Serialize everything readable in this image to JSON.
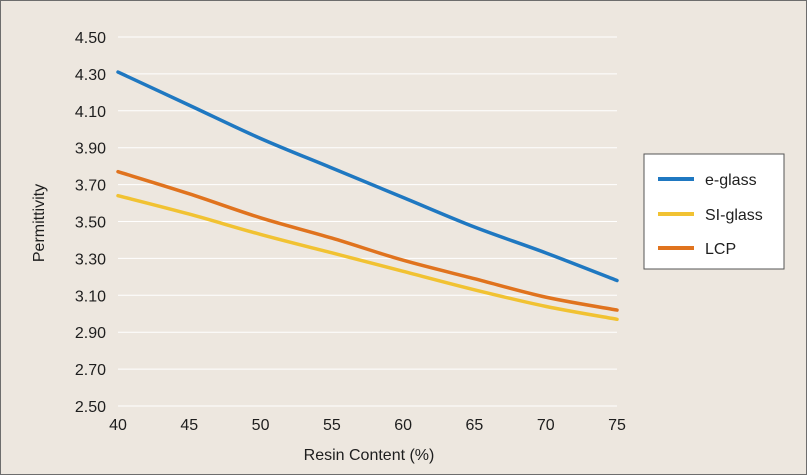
{
  "chart_data": {
    "type": "line",
    "title": "",
    "xlabel": "Resin Content (%)",
    "ylabel": "Permittivity",
    "xlim": [
      40,
      75
    ],
    "ylim": [
      2.5,
      4.5
    ],
    "x_ticks": [
      40,
      45,
      50,
      55,
      60,
      65,
      70,
      75
    ],
    "x_tick_labels": [
      "40",
      "45",
      "50",
      "55",
      "60",
      "65",
      "70",
      "75"
    ],
    "y_ticks": [
      2.5,
      2.7,
      2.9,
      3.1,
      3.3,
      3.5,
      3.7,
      3.9,
      4.1,
      4.3,
      4.5
    ],
    "y_tick_labels": [
      "2.50",
      "2.70",
      "2.90",
      "3.10",
      "3.30",
      "3.50",
      "3.70",
      "3.90",
      "4.10",
      "4.30",
      "4.50"
    ],
    "grid": "horizontal",
    "legend_position": "right",
    "background_color": "#ede7df",
    "gridline_color": "#ffffff",
    "x": [
      40,
      45,
      50,
      55,
      60,
      65,
      70,
      75
    ],
    "series": [
      {
        "name": "e-glass",
        "color": "#1f78c1",
        "values": [
          4.31,
          4.13,
          3.95,
          3.79,
          3.63,
          3.47,
          3.33,
          3.18
        ]
      },
      {
        "name": "SI-glass",
        "color": "#f1c232",
        "values": [
          3.64,
          3.54,
          3.43,
          3.33,
          3.23,
          3.13,
          3.04,
          2.97
        ]
      },
      {
        "name": "LCP",
        "color": "#e0731e",
        "values": [
          3.77,
          3.65,
          3.52,
          3.41,
          3.29,
          3.19,
          3.09,
          3.02
        ]
      }
    ]
  }
}
